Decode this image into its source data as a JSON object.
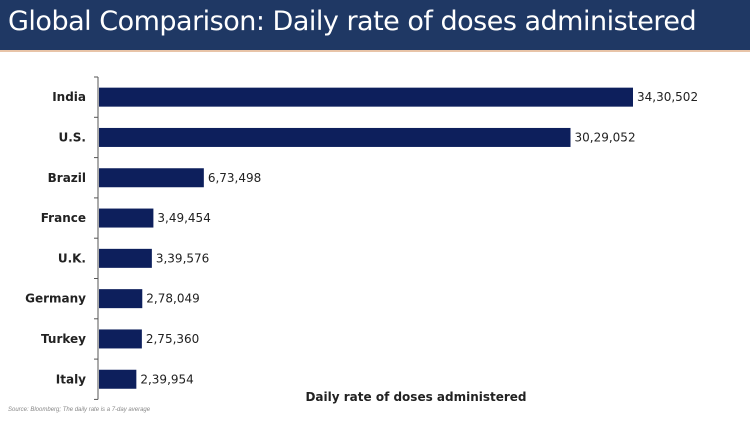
{
  "header": {
    "title": "Global Comparison: Daily rate of doses administered"
  },
  "source_note": "Source: Bloomberg; The daily rate is a 7-day average",
  "colors": {
    "bar": "#0d1f5c",
    "header_bg": "#1f3864"
  },
  "chart_data": {
    "type": "bar",
    "orientation": "horizontal",
    "title": "Global Comparison: Daily rate of doses administered",
    "xlabel": "Daily rate of doses administered",
    "ylabel": "",
    "categories": [
      "India",
      "U.S.",
      "Brazil",
      "France",
      "U.K.",
      "Germany",
      "Turkey",
      "Italy"
    ],
    "values": [
      3430502,
      3029052,
      673498,
      349454,
      339576,
      278049,
      275360,
      239954
    ],
    "data_labels": [
      "34,30,502",
      "30,29,052",
      "6,73,498",
      "3,49,454",
      "3,39,576",
      "2,78,049",
      "2,75,360",
      "2,39,954"
    ],
    "xlim": [
      0,
      3430502
    ],
    "grid": false,
    "legend": "none"
  }
}
